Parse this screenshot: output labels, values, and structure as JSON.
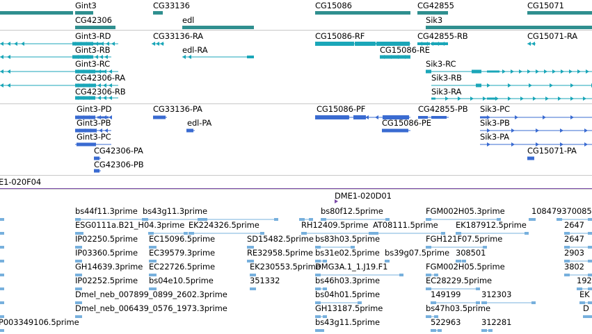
{
  "colors": {
    "gene": "#2f8f8f",
    "rna": "#1aa6b8",
    "protein": "#3a6bd1",
    "est": "#77b0dd",
    "bac": "#7a4aa8"
  },
  "gene_track": {
    "labels": [
      "Gint3",
      "CG33136",
      "CG15086",
      "CG42855",
      "CG15071",
      "CG42306",
      "edl",
      "Sik3"
    ]
  },
  "rna_track": {
    "labels": [
      "Gint3-RD",
      "CG33136-RA",
      "CG15086-RF",
      "CG42855-RB",
      "CG15071-RA",
      "Gint3-RB",
      "edl-RA",
      "CG15086-RE",
      "Gint3-RC",
      "Sik3-RC",
      "CG42306-RA",
      "Sik3-RB",
      "CG42306-RB",
      "Sik3-RA"
    ]
  },
  "protein_track": {
    "labels": [
      "Gint3-PD",
      "CG33136-PA",
      "CG15086-PF",
      "CG42855-PB",
      "Sik3-PC",
      "Gint3-PB",
      "edl-PA",
      "CG15086-PE",
      "Sik3-PB",
      "Gint3-PC",
      "Sik3-PA",
      "CG42306-PA",
      "CG15071-PA",
      "CG42306-PB"
    ]
  },
  "bac_track": {
    "labels": [
      "E1-020F04",
      "DME1-020D01"
    ]
  },
  "est_track": {
    "labels": [
      "bs44f11.3prime",
      "bs43g11.3prime",
      "bs80f12.5prime",
      "FGM002H05.3prime",
      "108479370085",
      "ESG0111a.B21_H04.3prime",
      "EK224326.5prime",
      "RH12409.5prime",
      "AT08111.5prime",
      "EK187912.5prime",
      "2647",
      "IP02250.5prime",
      "EC15096.5prime",
      "SD15482.5prime",
      "bs83h03.5prime",
      "FGH121F07.5prime",
      "2647",
      "IP03360.5prime",
      "EC39579.3prime",
      "RE32958.5prime",
      "bs31e02.5prime",
      "bs39g07.5prime",
      "308501",
      "2903",
      "GH14639.3prime",
      "EC22726.5prime",
      "EK230553.5prime",
      "DMG3A.1_1.J19.F1",
      "FGM002H05.5prime",
      "3802",
      "IP02252.5prime",
      "bs04e10.5prime",
      "351332",
      "bs46h03.3prime",
      "EC28229.5prime",
      "192",
      "Dmel_neb_007899_0899_2602.3prime",
      "bs04h01.5prime",
      "149199",
      "312303",
      "EK",
      "Dmel_neb_006439_0576_1973.3prime",
      "GH13187.5prime",
      "bs47h03.5prime",
      "D",
      "P003349106.5prime",
      "bs43g11.5prime",
      "522963",
      "312281"
    ]
  }
}
